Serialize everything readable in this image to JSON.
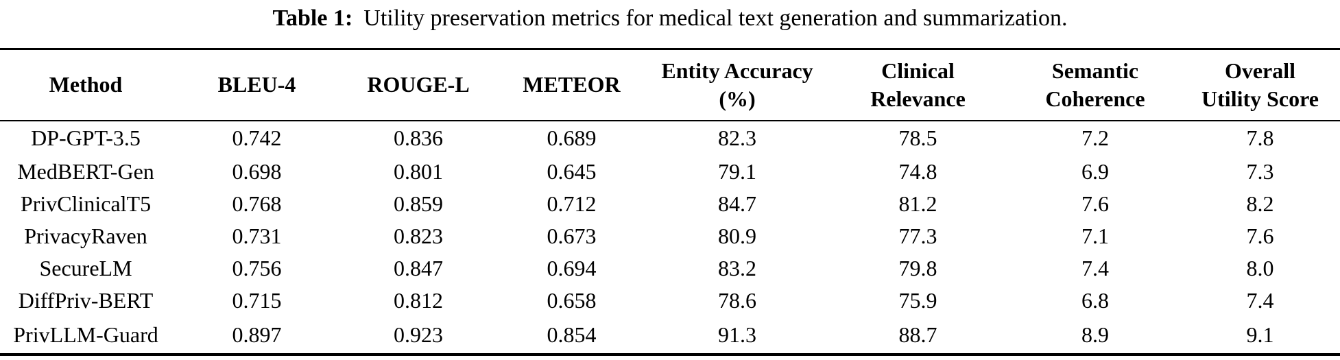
{
  "caption": {
    "label": "Table 1:",
    "text": "Utility preservation metrics for medical text generation and summarization."
  },
  "table": {
    "headers": [
      {
        "lines": [
          "Method"
        ]
      },
      {
        "lines": [
          "BLEU-4"
        ]
      },
      {
        "lines": [
          "ROUGE-L"
        ]
      },
      {
        "lines": [
          "METEOR"
        ]
      },
      {
        "lines": [
          "Entity Accuracy",
          "(%)"
        ]
      },
      {
        "lines": [
          "Clinical",
          "Relevance"
        ]
      },
      {
        "lines": [
          "Semantic",
          "Coherence"
        ]
      },
      {
        "lines": [
          "Overall",
          "Utility Score"
        ]
      }
    ],
    "rows": [
      {
        "cells": [
          "DP-GPT-3.5",
          "0.742",
          "0.836",
          "0.689",
          "82.3",
          "78.5",
          "7.2",
          "7.8"
        ]
      },
      {
        "cells": [
          "MedBERT-Gen",
          "0.698",
          "0.801",
          "0.645",
          "79.1",
          "74.8",
          "6.9",
          "7.3"
        ]
      },
      {
        "cells": [
          "PrivClinicalT5",
          "0.768",
          "0.859",
          "0.712",
          "84.7",
          "81.2",
          "7.6",
          "8.2"
        ]
      },
      {
        "cells": [
          "PrivacyRaven",
          "0.731",
          "0.823",
          "0.673",
          "80.9",
          "77.3",
          "7.1",
          "7.6"
        ]
      },
      {
        "cells": [
          "SecureLM",
          "0.756",
          "0.847",
          "0.694",
          "83.2",
          "79.8",
          "7.4",
          "8.0"
        ]
      },
      {
        "cells": [
          "DiffPriv-BERT",
          "0.715",
          "0.812",
          "0.658",
          "78.6",
          "75.9",
          "6.8",
          "7.4"
        ]
      },
      {
        "cells": [
          "PrivLLM-Guard",
          "0.897",
          "0.923",
          "0.854",
          "91.3",
          "88.7",
          "8.9",
          "9.1"
        ]
      }
    ]
  },
  "chart_data": {
    "type": "table",
    "title": "Table 1: Utility preservation metrics for medical text generation and summarization.",
    "columns": [
      "Method",
      "BLEU-4",
      "ROUGE-L",
      "METEOR",
      "Entity Accuracy (%)",
      "Clinical Relevance",
      "Semantic Coherence",
      "Overall Utility Score"
    ],
    "rows": [
      [
        "DP-GPT-3.5",
        0.742,
        0.836,
        0.689,
        82.3,
        78.5,
        7.2,
        7.8
      ],
      [
        "MedBERT-Gen",
        0.698,
        0.801,
        0.645,
        79.1,
        74.8,
        6.9,
        7.3
      ],
      [
        "PrivClinicalT5",
        0.768,
        0.859,
        0.712,
        84.7,
        81.2,
        7.6,
        8.2
      ],
      [
        "PrivacyRaven",
        0.731,
        0.823,
        0.673,
        80.9,
        77.3,
        7.1,
        7.6
      ],
      [
        "SecureLM",
        0.756,
        0.847,
        0.694,
        83.2,
        79.8,
        7.4,
        8.0
      ],
      [
        "DiffPriv-BERT",
        0.715,
        0.812,
        0.658,
        78.6,
        75.9,
        6.8,
        7.4
      ],
      [
        "PrivLLM-Guard",
        0.897,
        0.923,
        0.854,
        91.3,
        88.7,
        8.9,
        9.1
      ]
    ]
  }
}
